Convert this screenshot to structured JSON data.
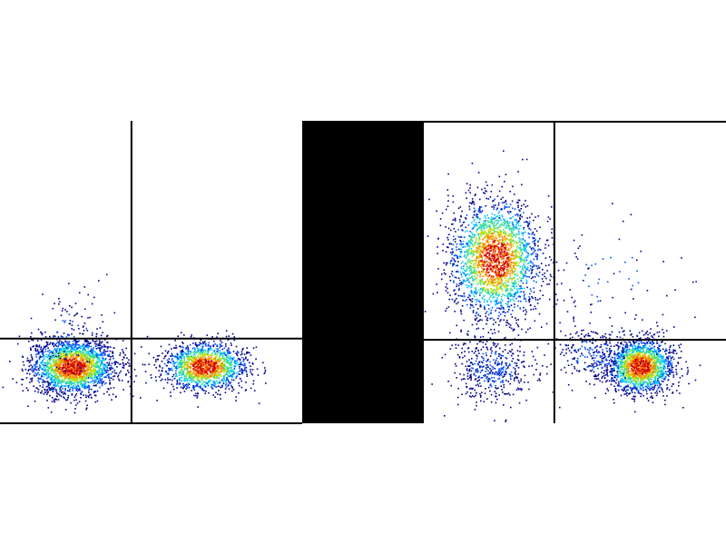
{
  "chart_data": {
    "type": "scatter",
    "style": "density dot plot (flow cytometry style), colored blue-cyan-green-yellow-red by density",
    "grid": false,
    "colors": {
      "background": "#ffffff",
      "gate_lines": "#000000",
      "separator": "#000000",
      "density_scale": [
        "#00008b",
        "#0050ff",
        "#00c8ff",
        "#40e080",
        "#c8e000",
        "#ff8000",
        "#d00000"
      ]
    },
    "panels": [
      {
        "id": "left",
        "xlim": [
          0,
          1000
        ],
        "ylim": [
          0,
          1000
        ],
        "quadrant_gate": {
          "x": 435,
          "y": 280
        },
        "populations": [
          {
            "center": [
              240,
              189
            ],
            "sd": [
              70,
              45
            ],
            "events": 2200
          },
          {
            "center": [
              676,
              189
            ],
            "sd": [
              70,
              40
            ],
            "events": 1500
          },
          {
            "center": [
              230,
              290
            ],
            "sd": [
              60,
              70
            ],
            "events": 120
          }
        ]
      },
      {
        "id": "right",
        "xlim": [
          0,
          1000
        ],
        "ylim": [
          0,
          1000
        ],
        "quadrant_gate": {
          "x": 432,
          "y": 276
        },
        "populations": [
          {
            "center": [
              234,
              544
            ],
            "sd": [
              75,
              100
            ],
            "events": 2300
          },
          {
            "center": [
              225,
              180
            ],
            "sd": [
              70,
              55
            ],
            "events": 450
          },
          {
            "center": [
              715,
              190
            ],
            "sd": [
              55,
              45
            ],
            "events": 1700
          },
          {
            "center": [
              560,
              230
            ],
            "sd": [
              60,
              50
            ],
            "events": 250
          },
          {
            "center": [
              600,
              480
            ],
            "sd": [
              110,
              110
            ],
            "events": 70
          }
        ]
      }
    ]
  }
}
